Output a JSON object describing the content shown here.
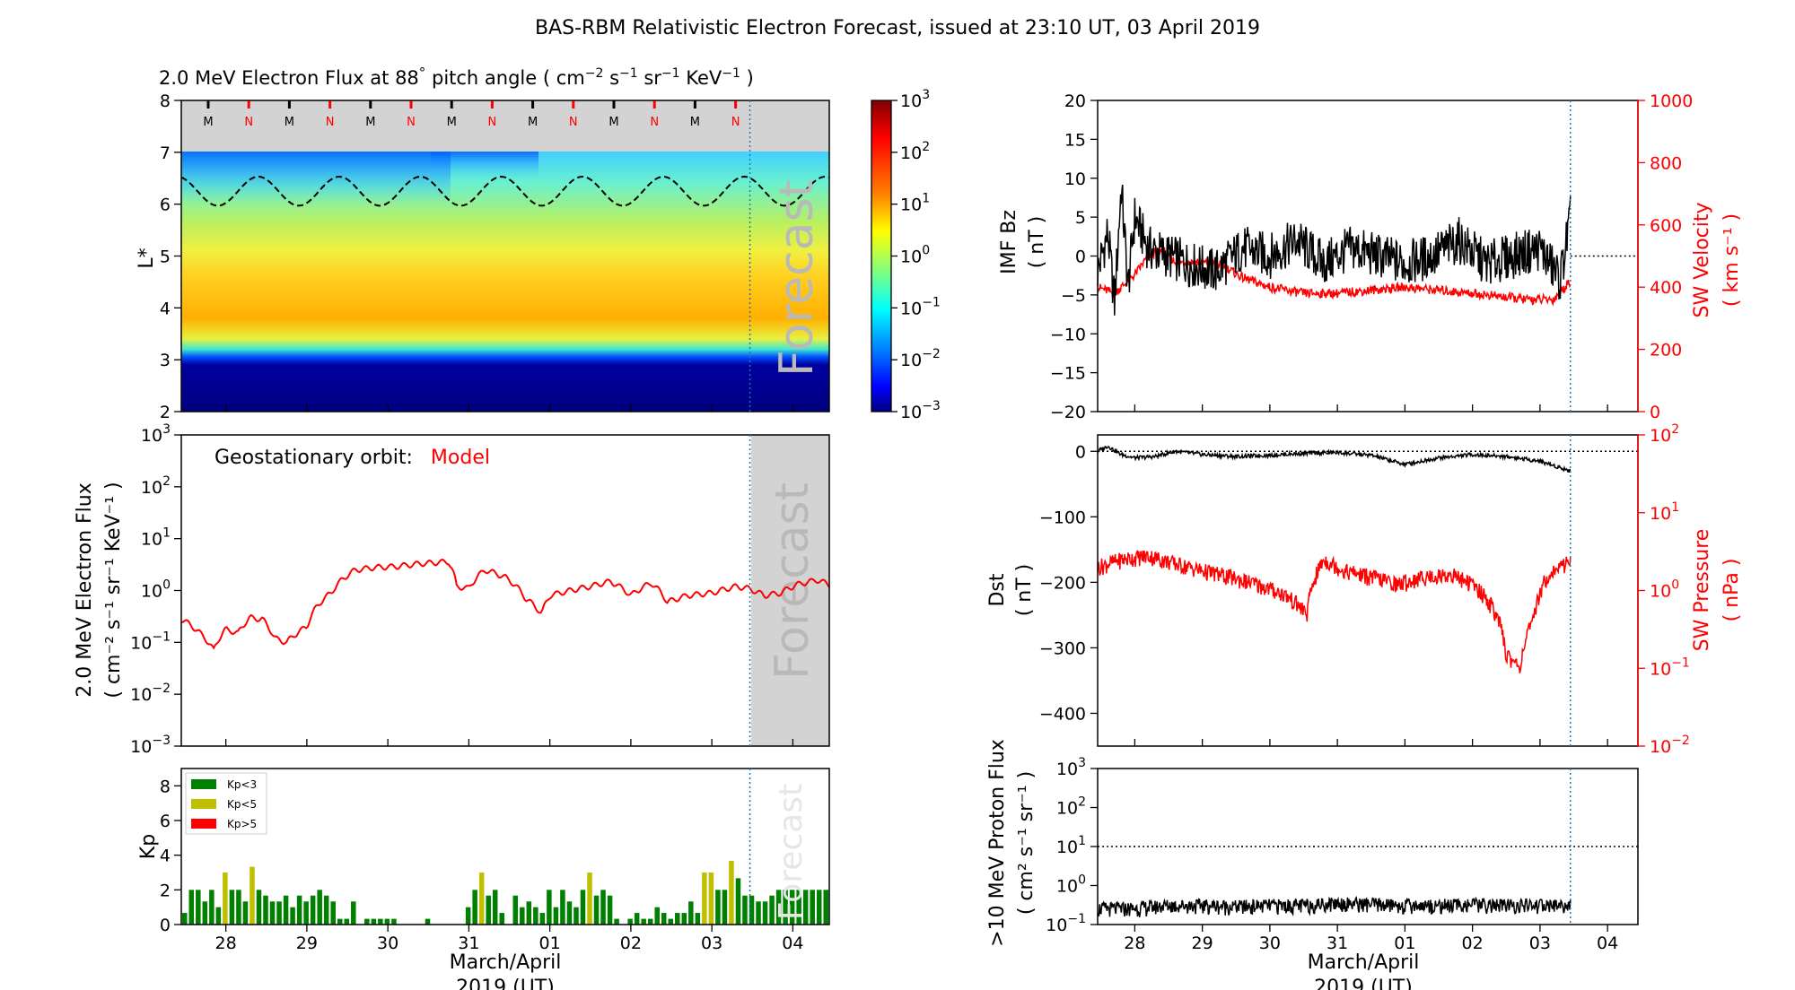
{
  "title": "BAS-RBM Relativistic Electron Forecast, issued at 23:10 UT, 03 April 2019",
  "colors": {
    "flux_line": "#ff0000",
    "sw_line": "#ff0000",
    "imf_line": "#000000",
    "forecast_marker": "#1f77b4",
    "forecast_shade": "#d3d3d3",
    "kp_low": "#008000",
    "kp_mid": "#bfbf00",
    "kp_high": "#ff0000"
  },
  "days": [
    "28",
    "29",
    "30",
    "31",
    "01",
    "02",
    "03",
    "04"
  ],
  "xlabel_1": "March/April",
  "xlabel_2": "2019 (UT)",
  "forecast_label": "Forecast",
  "panels": {
    "lstar": {
      "title_main": "2.0 MeV Electron Flux at 88",
      "title_deg": "°",
      "title_units_open": "pitch angle ( cm",
      "title_units_rest": "s",
      "title_units_sr": "sr",
      "title_units_kev": "KeV",
      "title_close": ")",
      "ylabel": "L*",
      "yticks": [
        "2",
        "3",
        "4",
        "5",
        "6",
        "7",
        "8"
      ],
      "markers": [
        "M",
        "N",
        "M",
        "N",
        "M",
        "N",
        "M",
        "N",
        "M",
        "N",
        "M",
        "N",
        "M",
        "N"
      ],
      "colorbar_ticks": [
        "10",
        "10",
        "10",
        "10",
        "10",
        "10",
        "10"
      ],
      "colorbar_exps": [
        "3",
        "2",
        "1",
        "0",
        "−1",
        "−2",
        "−3"
      ]
    },
    "geo": {
      "label": "Geostationary orbit:",
      "label_model": "Model",
      "ylabel_1": "2.0 MeV Electron Flux",
      "ylabel_2": "( cm⁻² s⁻¹ sr⁻¹ KeV⁻¹ )",
      "yticks": [
        "10",
        "10",
        "10",
        "10",
        "10",
        "10",
        "10"
      ],
      "yexps": [
        "3",
        "2",
        "1",
        "0",
        "−1",
        "−2",
        "−3"
      ]
    },
    "kp": {
      "ylabel": "Kp",
      "yticks": [
        "0",
        "2",
        "4",
        "6",
        "8"
      ],
      "legend": [
        "Kp<3",
        "Kp<5",
        "Kp>5"
      ]
    },
    "imf": {
      "ylabel_1": "IMF Bz",
      "ylabel_2": "( nT )",
      "yticks": [
        "20",
        "15",
        "10",
        "5",
        "0",
        "−5",
        "−10",
        "−15",
        "−20"
      ],
      "ylabel_r1": "SW Velocity",
      "ylabel_r2": "( km s⁻¹ )",
      "yticks_r": [
        "1000",
        "800",
        "600",
        "400",
        "200",
        "0"
      ]
    },
    "dst": {
      "ylabel_1": "Dst",
      "ylabel_2": "( nT )",
      "yticks": [
        "0",
        "−100",
        "−200",
        "−300",
        "−400"
      ],
      "ylabel_r1": "SW Pressure",
      "ylabel_r2": "( nPa )",
      "yticks_r": [
        "10",
        "10",
        "10",
        "10",
        "10"
      ],
      "yexps_r": [
        "2",
        "1",
        "0",
        "−1",
        "−2"
      ]
    },
    "proton": {
      "ylabel_1": ">10 MeV Proton Flux",
      "ylabel_2": "( cm² s⁻¹ sr⁻¹ )",
      "yticks": [
        "10",
        "10",
        "10",
        "10",
        "10"
      ],
      "yexps": [
        "3",
        "2",
        "1",
        "0",
        "−1"
      ]
    }
  },
  "chart_data": [
    {
      "type": "heatmap",
      "title": "2.0 MeV Electron Flux at 88° pitch angle ( cm⁻² s⁻¹ sr⁻¹ KeV⁻¹ )",
      "xlabel": "March/April 2019 (UT)",
      "ylabel": "L*",
      "ylim": [
        2,
        8
      ],
      "colorbar_log_range": [
        -3,
        3
      ],
      "x_range_days": [
        27.45,
        35.45
      ],
      "forecast_start_day": 34.47,
      "lstar_log_profile": [
        [
          2.0,
          -3
        ],
        [
          3.1,
          -3
        ],
        [
          3.2,
          -1.5
        ],
        [
          3.3,
          -0.2
        ],
        [
          3.6,
          0.9
        ],
        [
          4.0,
          1.3
        ],
        [
          4.6,
          1.3
        ],
        [
          5.0,
          0.8
        ],
        [
          5.5,
          0.5
        ],
        [
          6.0,
          0.1
        ],
        [
          6.5,
          -0.5
        ],
        [
          7.0,
          -1.2
        ]
      ],
      "magnetopause_L": {
        "mean": 6.25,
        "amplitude": 0.28,
        "period_days": 1.0
      }
    },
    {
      "type": "line",
      "title": "Geostationary orbit: Model",
      "ylabel": "2.0 MeV Electron Flux ( cm⁻² s⁻¹ sr⁻¹ KeV⁻¹ )",
      "yscale": "log",
      "ylim": [
        0.001,
        1000
      ],
      "series": [
        {
          "name": "Model",
          "x": [
            27.45,
            27.7,
            27.85,
            28.0,
            28.15,
            28.3,
            28.45,
            28.6,
            28.75,
            29.0,
            29.3,
            29.6,
            29.85,
            30.1,
            30.4,
            30.75,
            30.85,
            31.0,
            31.2,
            31.45,
            31.7,
            31.9,
            32.0,
            32.25,
            32.5,
            32.75,
            33.0,
            33.25,
            33.45,
            33.7,
            34.0,
            34.3,
            34.45,
            34.65,
            34.85,
            35.05,
            35.3,
            35.45
          ],
          "values": [
            0.28,
            0.14,
            0.07,
            0.18,
            0.15,
            0.3,
            0.28,
            0.12,
            0.1,
            0.2,
            0.9,
            2.5,
            2.8,
            2.9,
            3.3,
            3.6,
            1.2,
            1.1,
            2.5,
            1.8,
            0.7,
            0.35,
            0.8,
            1.0,
            1.2,
            1.5,
            0.8,
            1.4,
            0.6,
            0.8,
            0.9,
            1.2,
            1.1,
            0.8,
            0.9,
            1.3,
            1.6,
            1.3
          ]
        }
      ]
    },
    {
      "type": "bar",
      "ylabel": "Kp",
      "ylim": [
        0,
        9
      ],
      "bar_width_days": 0.0833,
      "start_day": 27.45,
      "bins_per_day": 12,
      "values": [
        0.67,
        2.0,
        2.0,
        1.33,
        2.0,
        1.0,
        3.0,
        2.0,
        2.0,
        1.33,
        3.33,
        2.0,
        1.67,
        1.33,
        1.33,
        1.67,
        1.0,
        1.67,
        1.33,
        1.67,
        2.0,
        1.67,
        1.33,
        0.33,
        0.33,
        1.33,
        0.0,
        0.33,
        0.33,
        0.33,
        0.33,
        0.33,
        0.0,
        0.0,
        0.0,
        0.0,
        0.33,
        0.0,
        0.0,
        0.0,
        0.0,
        0.0,
        1.0,
        2.0,
        3.0,
        1.67,
        2.0,
        0.67,
        0.0,
        1.67,
        1.0,
        1.33,
        1.0,
        0.67,
        2.0,
        1.0,
        2.0,
        1.33,
        1.0,
        2.0,
        3.0,
        1.67,
        2.0,
        1.67,
        0.33,
        0.0,
        0.33,
        0.67,
        0.33,
        0.33,
        1.0,
        0.67,
        0.33,
        0.67,
        0.67,
        1.33,
        0.67,
        3.0,
        3.0,
        2.0,
        2.0,
        3.67,
        2.67,
        1.67,
        1.67,
        1.33,
        1.33,
        1.67,
        2.0,
        2.0,
        2.0,
        2.0,
        2.0,
        2.0,
        2.0,
        2.0
      ],
      "categories_note": "Kp<3 green, Kp<5 yellow, Kp>5 red"
    },
    {
      "type": "line",
      "ylabel": "IMF Bz ( nT )",
      "ylim": [
        -20,
        20
      ],
      "series": [
        {
          "name": "IMF Bz",
          "x": [
            27.45,
            27.6,
            27.7,
            27.8,
            27.9,
            28.0,
            28.2,
            28.5,
            28.8,
            29.2,
            29.6,
            30.0,
            30.4,
            30.8,
            31.2,
            31.6,
            32.0,
            32.4,
            32.8,
            33.2,
            33.6,
            34.0,
            34.3,
            34.45
          ],
          "values": [
            -2,
            3,
            -6,
            9,
            -4,
            5,
            1,
            0,
            -1,
            -2,
            1,
            0,
            2,
            -1,
            1,
            0,
            -1,
            0,
            2,
            -1,
            0,
            1,
            -3,
            5
          ]
        },
        {
          "name": "SW Velocity",
          "axis": "right",
          "ylim": [
            0,
            1000
          ],
          "x": [
            27.45,
            27.7,
            28.0,
            28.2,
            28.4,
            28.6,
            29.0,
            29.3,
            29.6,
            30.0,
            30.5,
            31.0,
            31.5,
            32.0,
            32.5,
            33.0,
            33.4,
            33.8,
            34.2,
            34.45
          ],
          "values": [
            400,
            380,
            440,
            500,
            520,
            480,
            480,
            470,
            430,
            400,
            380,
            380,
            390,
            400,
            390,
            380,
            370,
            360,
            360,
            420
          ]
        }
      ]
    },
    {
      "type": "line",
      "ylabel": "Dst ( nT )",
      "ylim": [
        -450,
        25
      ],
      "series": [
        {
          "name": "Dst",
          "x": [
            27.45,
            27.6,
            27.8,
            28.0,
            28.3,
            28.6,
            29.0,
            29.5,
            30.0,
            30.5,
            31.0,
            31.5,
            32.0,
            32.5,
            33.0,
            33.5,
            34.0,
            34.3,
            34.45
          ],
          "values": [
            0,
            8,
            -5,
            -10,
            -8,
            0,
            -5,
            -8,
            -6,
            -3,
            -2,
            -6,
            -20,
            -10,
            -5,
            -8,
            -15,
            -25,
            -30
          ]
        },
        {
          "name": "SW Pressure",
          "axis": "right",
          "yscale": "log",
          "ylim": [
            0.01,
            100
          ],
          "x": [
            27.45,
            27.8,
            28.2,
            28.6,
            29.0,
            29.4,
            29.8,
            30.2,
            30.55,
            30.8,
            31.1,
            31.5,
            31.9,
            32.3,
            32.7,
            33.0,
            33.3,
            33.5,
            33.7,
            33.9,
            34.1,
            34.3,
            34.45
          ],
          "values": [
            2.0,
            2.5,
            2.8,
            2.2,
            1.8,
            1.5,
            1.2,
            0.9,
            0.5,
            2.5,
            1.8,
            1.5,
            1.2,
            1.5,
            1.6,
            1.2,
            0.6,
            0.15,
            0.1,
            0.4,
            1.5,
            2.0,
            2.5
          ]
        }
      ]
    },
    {
      "type": "line",
      "ylabel": ">10 MeV Proton Flux ( cm² s⁻¹ sr⁻¹ )",
      "yscale": "log",
      "ylim": [
        0.1,
        1000
      ],
      "threshold": 10,
      "series": [
        {
          "name": "Proton flux",
          "x": [
            27.45,
            28.0,
            28.5,
            29.0,
            29.5,
            30.0,
            30.5,
            31.0,
            31.5,
            32.0,
            32.5,
            33.0,
            33.5,
            34.0,
            34.45
          ],
          "values": [
            0.25,
            0.25,
            0.3,
            0.3,
            0.28,
            0.3,
            0.3,
            0.35,
            0.32,
            0.3,
            0.3,
            0.32,
            0.3,
            0.3,
            0.3
          ]
        }
      ]
    }
  ]
}
